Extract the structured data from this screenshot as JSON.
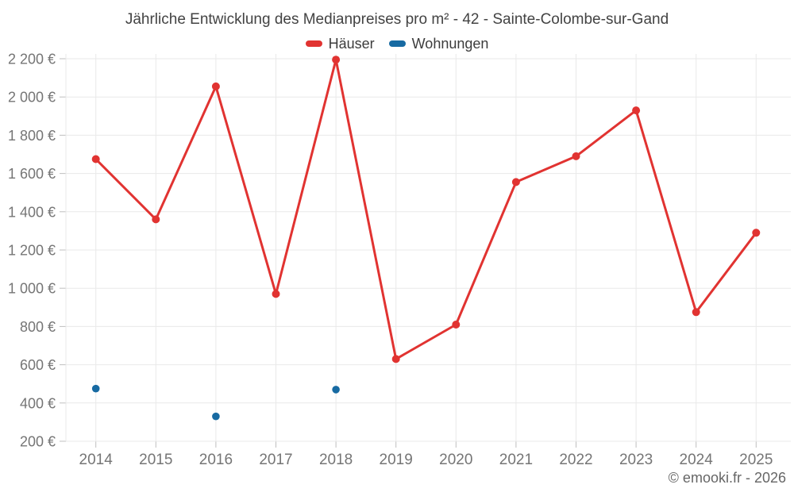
{
  "title": "Jährliche Entwicklung des Medianpreises pro m² - 42 - Sainte-Colombe-sur-Gand",
  "footer": "© emooki.fr - 2026",
  "colors": {
    "hauser_red": "#e13331",
    "wohnungen_blue": "#176aa2",
    "gridline": "#e9e9e9",
    "tick": "#bfbfbf",
    "axis_label": "#757575",
    "title_text": "#434343"
  },
  "chart_data": {
    "type": "line",
    "title": "Jährliche Entwicklung des Medianpreises pro m² - 42 - Sainte-Colombe-sur-Gand",
    "xlabel": "",
    "ylabel": "",
    "x": [
      2014,
      2015,
      2016,
      2017,
      2018,
      2019,
      2020,
      2021,
      2022,
      2023,
      2024,
      2025
    ],
    "xtick_labels": [
      "2014",
      "2015",
      "2016",
      "2017",
      "2018",
      "2019",
      "2020",
      "2021",
      "2022",
      "2023",
      "2024",
      "2025"
    ],
    "ylim": [
      200,
      2200
    ],
    "ytick_step": 200,
    "ytick_labels": [
      "200 €",
      "400 €",
      "600 €",
      "800 €",
      "1 000 €",
      "1 200 €",
      "1 400 €",
      "1 600 €",
      "1 800 €",
      "2 000 €",
      "2 200 €"
    ],
    "grid": true,
    "legend_position": "top",
    "series": [
      {
        "name": "Häuser",
        "style": "line+markers",
        "color": "#e13331",
        "values": [
          1675,
          1360,
          2055,
          970,
          2195,
          630,
          810,
          1555,
          1690,
          1930,
          875,
          1290
        ]
      },
      {
        "name": "Wohnungen",
        "style": "markers",
        "color": "#176aa2",
        "values": [
          475,
          null,
          330,
          null,
          470,
          null,
          null,
          null,
          null,
          null,
          null,
          null
        ]
      }
    ]
  }
}
